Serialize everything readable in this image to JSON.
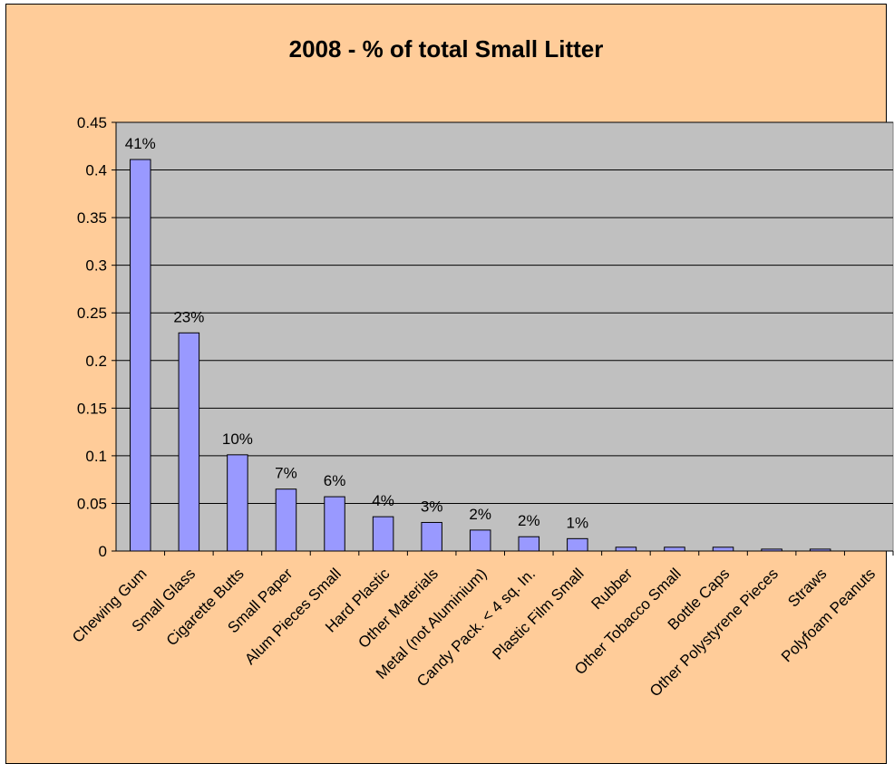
{
  "chart_data": {
    "type": "bar",
    "title": "2008 - % of total Small Litter",
    "xlabel": "",
    "ylabel": "",
    "ylim": [
      0,
      0.45
    ],
    "yticks": [
      "0",
      "0.05",
      "0.1",
      "0.15",
      "0.2",
      "0.25",
      "0.3",
      "0.35",
      "0.4",
      "0.45"
    ],
    "grid": true,
    "legend": "none",
    "categories": [
      "Chewing Gum",
      "Small Glass",
      "Cigarette Butts",
      "Small Paper",
      "Alum Pieces Small",
      "Hard Plastic",
      "Other Materials",
      "Metal (not Aluminium)",
      "Candy Pack. < 4 sq. In.",
      "Plastic Film Small",
      "Rubber",
      "Other Tobacco Small",
      "Bottle Caps",
      "Other Polystyrene Pieces",
      "Straws",
      "Polyfoam Peanuts"
    ],
    "values": [
      0.411,
      0.229,
      0.101,
      0.065,
      0.057,
      0.036,
      0.03,
      0.022,
      0.015,
      0.013,
      0.004,
      0.004,
      0.004,
      0.002,
      0.002,
      0
    ],
    "data_labels": [
      "41%",
      "23%",
      "10%",
      "7%",
      "6%",
      "4%",
      "3%",
      "2%",
      "2%",
      "1%",
      "",
      "",
      "",
      "",
      "",
      ""
    ],
    "colors": {
      "background": "#ffcc99",
      "plot_area": "#c0c0c0",
      "bar_fill": "#9999ff",
      "bar_stroke": "#000000",
      "grid": "#000000"
    }
  }
}
